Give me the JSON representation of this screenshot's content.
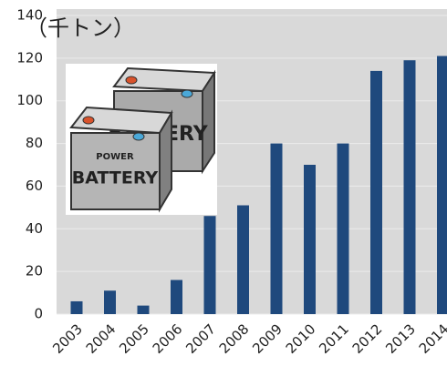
{
  "chart_data": {
    "type": "bar",
    "unit_label": "（千トン）",
    "categories": [
      "2003",
      "2004",
      "2005",
      "2006",
      "2007",
      "2008",
      "2009",
      "2010",
      "2011",
      "2012",
      "2013",
      "2014"
    ],
    "values": [
      6,
      11,
      4,
      16,
      46,
      51,
      80,
      70,
      80,
      114,
      119,
      121
    ],
    "color": "#1f497d",
    "ylim": [
      0,
      140
    ],
    "yticks": [
      0,
      20,
      40,
      60,
      80,
      100,
      120,
      140
    ],
    "grid": true,
    "image_labels": [
      "POWER",
      "BATTERY"
    ]
  }
}
